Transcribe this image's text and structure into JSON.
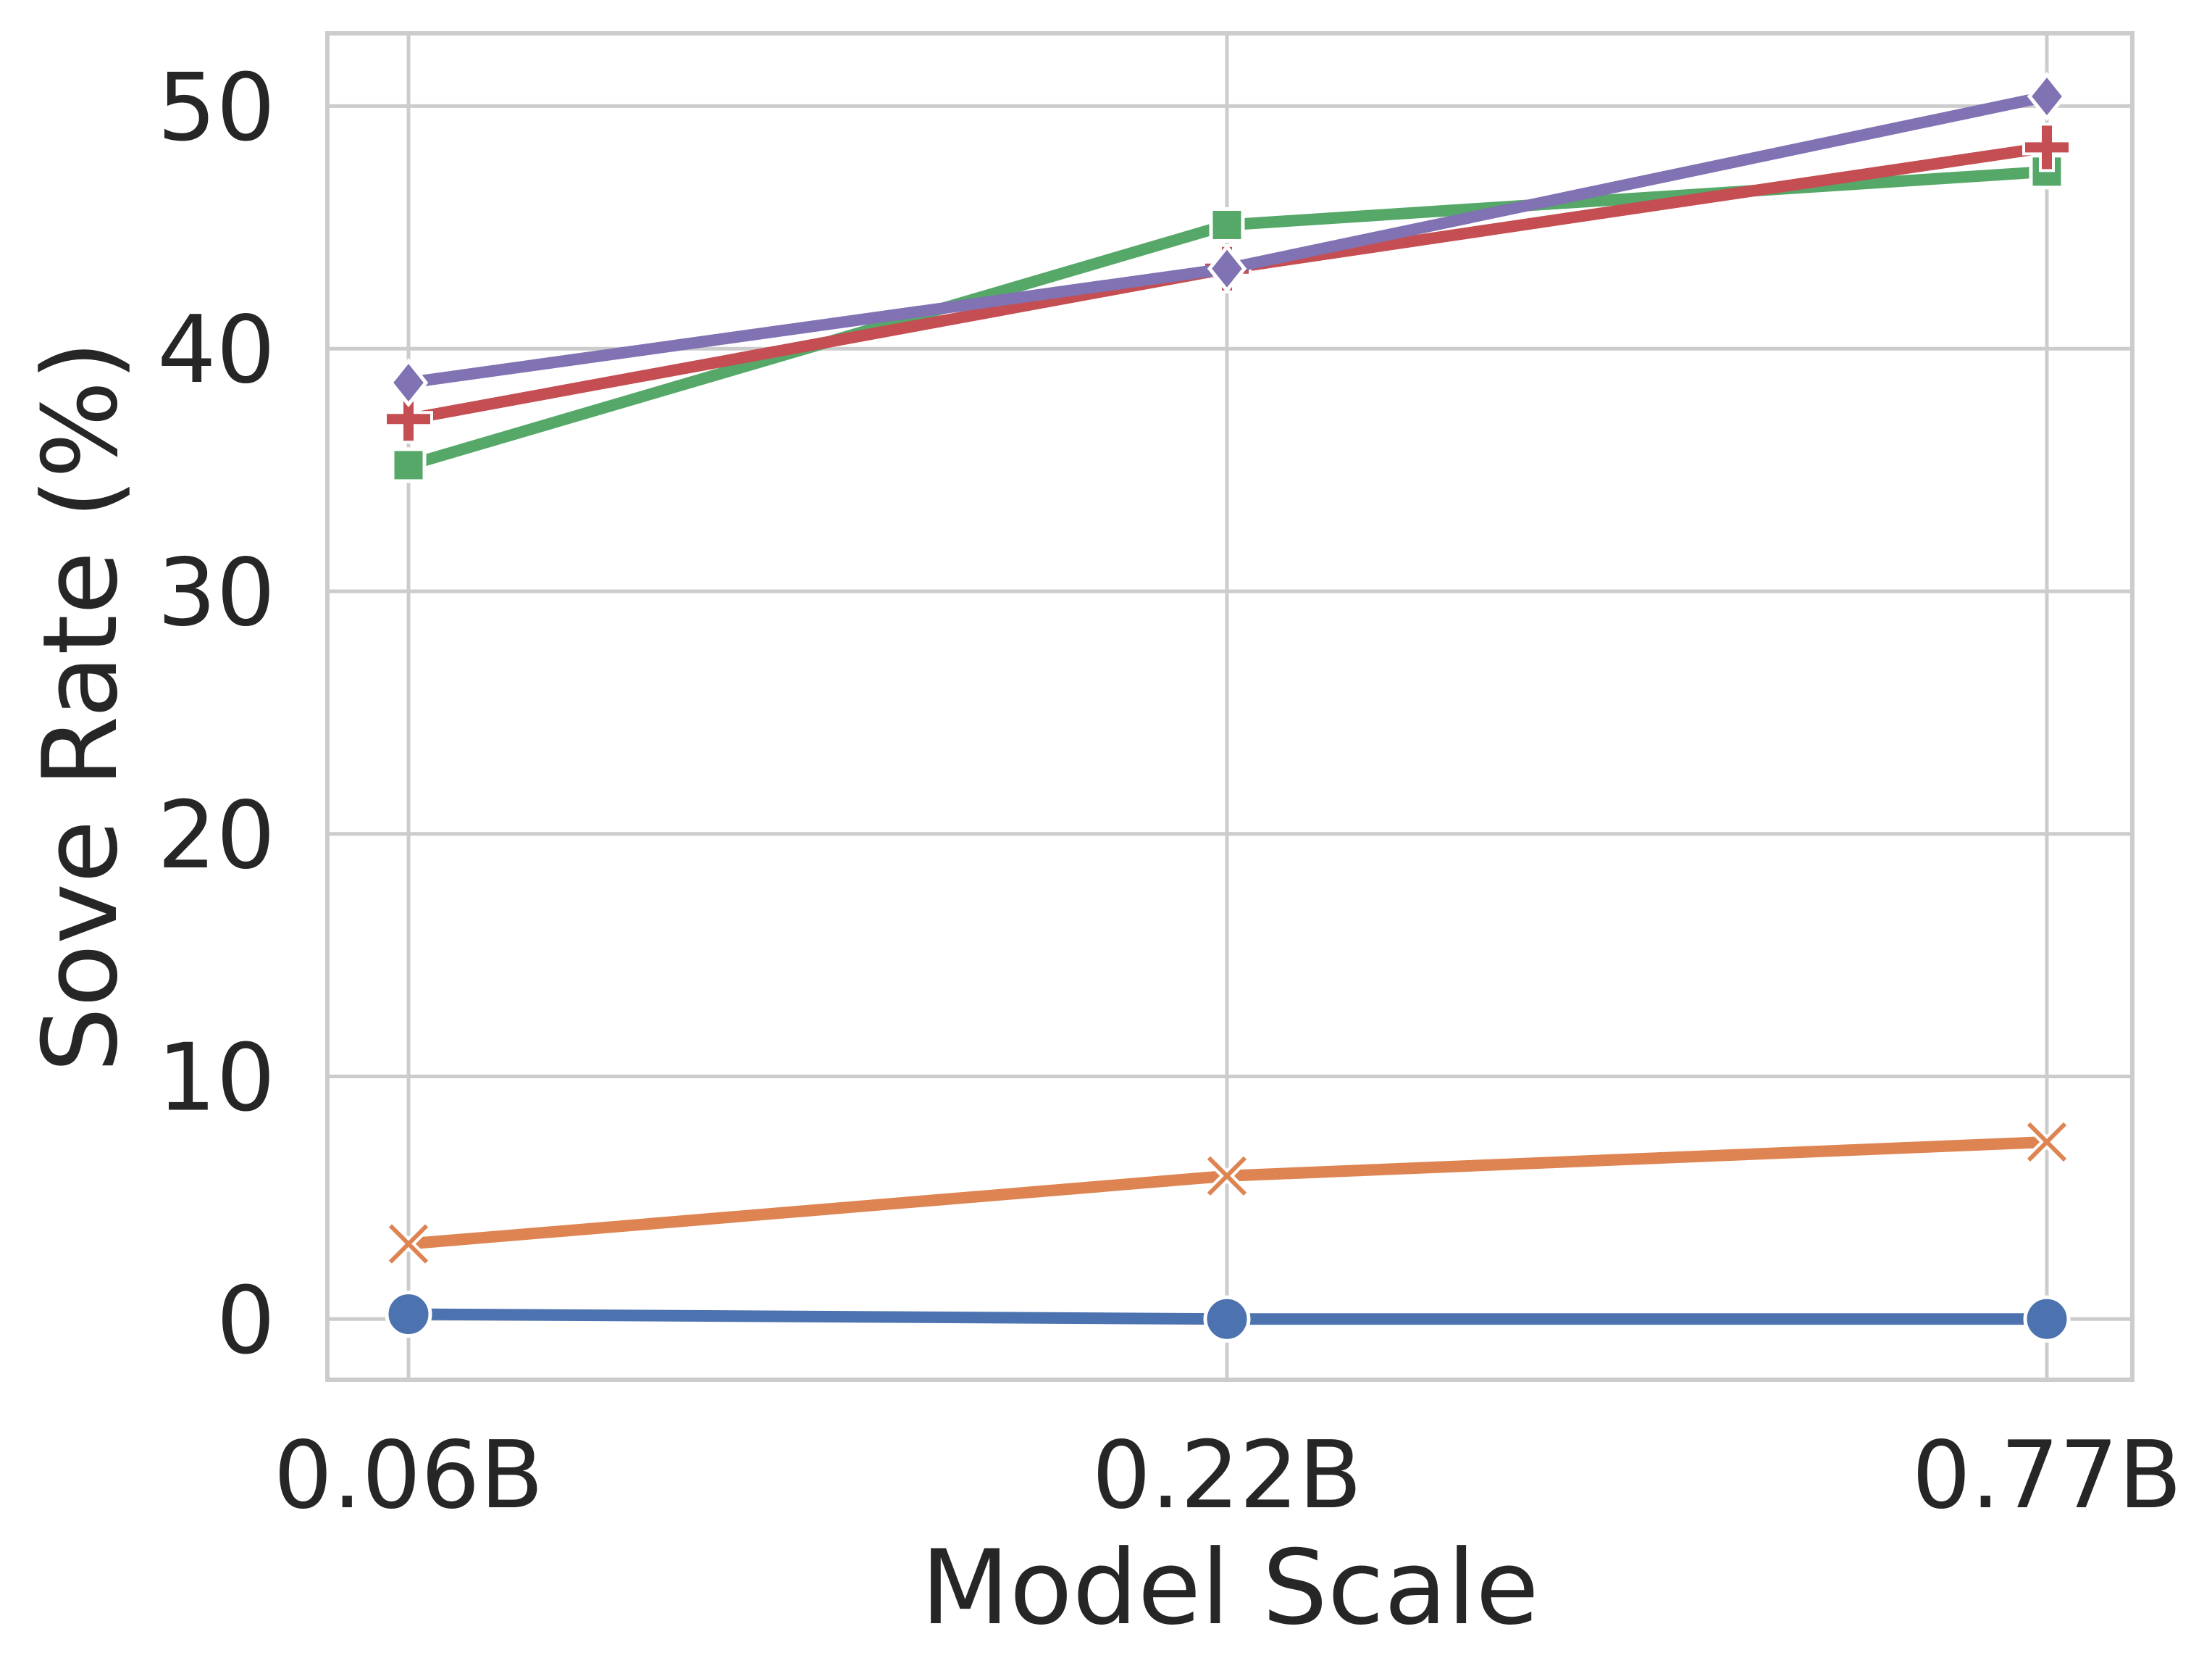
{
  "chart_data": {
    "type": "line",
    "xlabel": "Model Scale",
    "ylabel": "Sove Rate (%)",
    "categories": [
      "0.06B",
      "0.22B",
      "0.77B"
    ],
    "yticks": [
      0,
      10,
      20,
      30,
      40,
      50
    ],
    "ylim": [
      -2.5,
      53
    ],
    "grid": true,
    "legend": "none",
    "series": [
      {
        "color": "#4c72b0",
        "marker": "circle",
        "values": [
          0.2,
          0.0,
          0.0
        ]
      },
      {
        "color": "#dd8452",
        "marker": "x",
        "values": [
          3.1,
          5.9,
          7.3
        ]
      },
      {
        "color": "#55a868",
        "marker": "square",
        "values": [
          35.2,
          45.1,
          47.3
        ]
      },
      {
        "color": "#c44e52",
        "marker": "plus",
        "values": [
          37.1,
          43.3,
          48.3
        ]
      },
      {
        "color": "#8172b3",
        "marker": "diamond",
        "values": [
          38.6,
          43.3,
          50.4
        ]
      }
    ]
  }
}
